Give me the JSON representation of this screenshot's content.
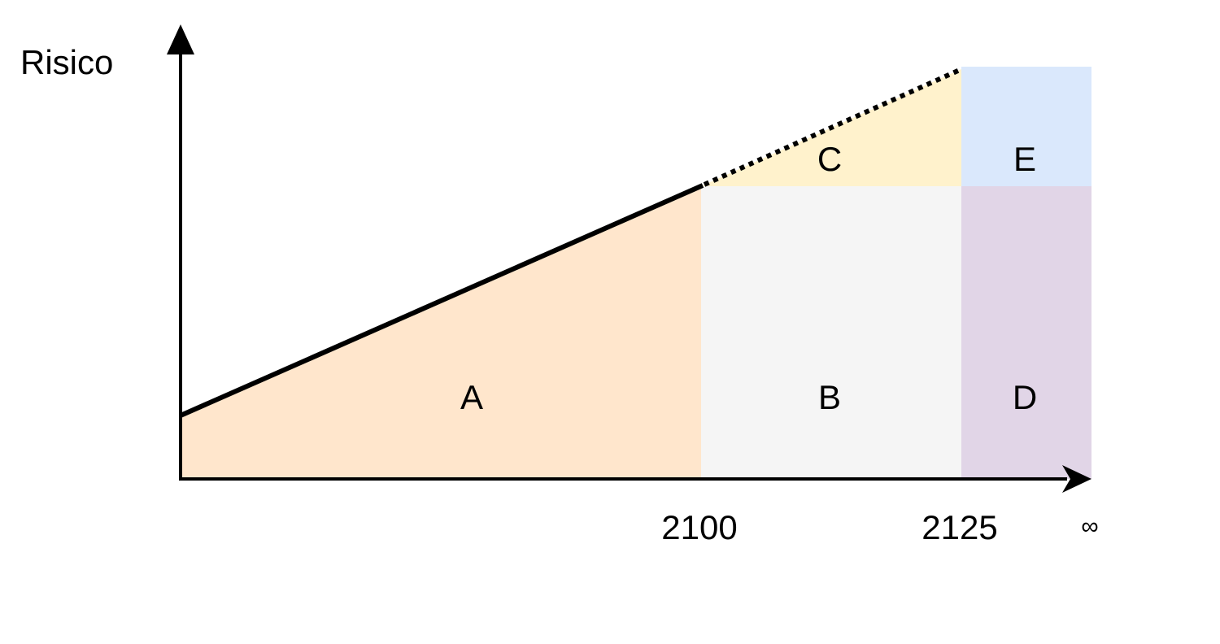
{
  "axes": {
    "y_label": "Risico",
    "x_ticks": [
      "2100",
      "2125",
      "∞"
    ]
  },
  "regions": {
    "A": {
      "label": "A",
      "color": "#FFE6CC"
    },
    "B": {
      "label": "B",
      "color": "#F5F5F5"
    },
    "C": {
      "label": "C",
      "color": "#FFF2CC"
    },
    "D": {
      "label": "D",
      "color": "#E1D5E7"
    },
    "E": {
      "label": "E",
      "color": "#DAE8FC"
    }
  },
  "lines": {
    "risk_line_color": "#000000",
    "projected_line_color": "#000000"
  }
}
